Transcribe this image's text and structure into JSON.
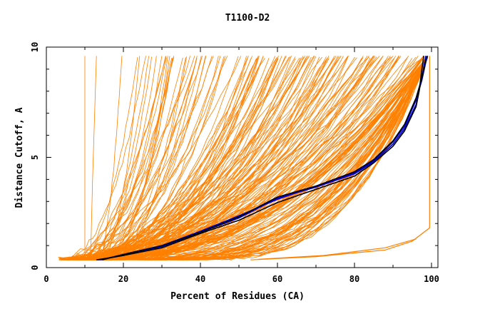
{
  "chart_data": {
    "type": "line",
    "title": "T1100-D2",
    "xlabel": "Percent of Residues (CA)",
    "ylabel": "Distance Cutoff, A",
    "xlim": [
      0,
      100
    ],
    "ylim": [
      0,
      10
    ],
    "x_ticks": [
      0,
      20,
      40,
      60,
      80,
      100
    ],
    "y_ticks": [
      0,
      5,
      10
    ],
    "grid": false,
    "colors": {
      "models": "#ff8000",
      "highlight_blue": "#0000cc",
      "highlight_black": "#000000",
      "axes": "#000000"
    },
    "highlight_series": [
      {
        "color": "#0000cc",
        "points": [
          [
            13.5,
            0.35
          ],
          [
            20,
            0.55
          ],
          [
            30,
            0.95
          ],
          [
            40,
            1.6
          ],
          [
            50,
            2.25
          ],
          [
            60,
            3.15
          ],
          [
            70,
            3.65
          ],
          [
            80,
            4.25
          ],
          [
            85,
            4.8
          ],
          [
            90,
            5.6
          ],
          [
            93,
            6.3
          ],
          [
            96,
            7.4
          ],
          [
            97,
            8.2
          ],
          [
            98,
            9.1
          ],
          [
            98.5,
            9.6
          ]
        ]
      },
      {
        "color": "#0000cc",
        "points": [
          [
            14,
            0.35
          ],
          [
            20,
            0.6
          ],
          [
            30,
            1.0
          ],
          [
            40,
            1.65
          ],
          [
            50,
            2.35
          ],
          [
            60,
            3.1
          ],
          [
            70,
            3.7
          ],
          [
            80,
            4.3
          ],
          [
            85,
            4.85
          ],
          [
            90,
            5.7
          ],
          [
            93,
            6.4
          ],
          [
            96,
            7.6
          ],
          [
            97.5,
            8.5
          ],
          [
            98.5,
            9.3
          ],
          [
            99,
            9.6
          ]
        ]
      },
      {
        "color": "#000000",
        "points": [
          [
            13,
            0.35
          ],
          [
            20,
            0.55
          ],
          [
            30,
            0.9
          ],
          [
            40,
            1.55
          ],
          [
            50,
            2.15
          ],
          [
            60,
            2.95
          ],
          [
            70,
            3.55
          ],
          [
            80,
            4.15
          ],
          [
            85,
            4.75
          ],
          [
            90,
            5.5
          ],
          [
            93,
            6.2
          ],
          [
            96,
            7.3
          ],
          [
            96.8,
            8.0
          ],
          [
            97.5,
            9.0
          ],
          [
            98,
            9.6
          ]
        ]
      },
      {
        "color": "#000000",
        "points": [
          [
            14.5,
            0.35
          ],
          [
            20,
            0.6
          ],
          [
            30,
            1.0
          ],
          [
            40,
            1.6
          ],
          [
            50,
            2.3
          ],
          [
            60,
            3.2
          ],
          [
            70,
            3.7
          ],
          [
            80,
            4.35
          ],
          [
            85,
            4.9
          ],
          [
            90,
            5.75
          ],
          [
            93,
            6.5
          ],
          [
            96,
            7.7
          ],
          [
            97.5,
            8.6
          ],
          [
            98.8,
            9.6
          ]
        ]
      }
    ]
  }
}
